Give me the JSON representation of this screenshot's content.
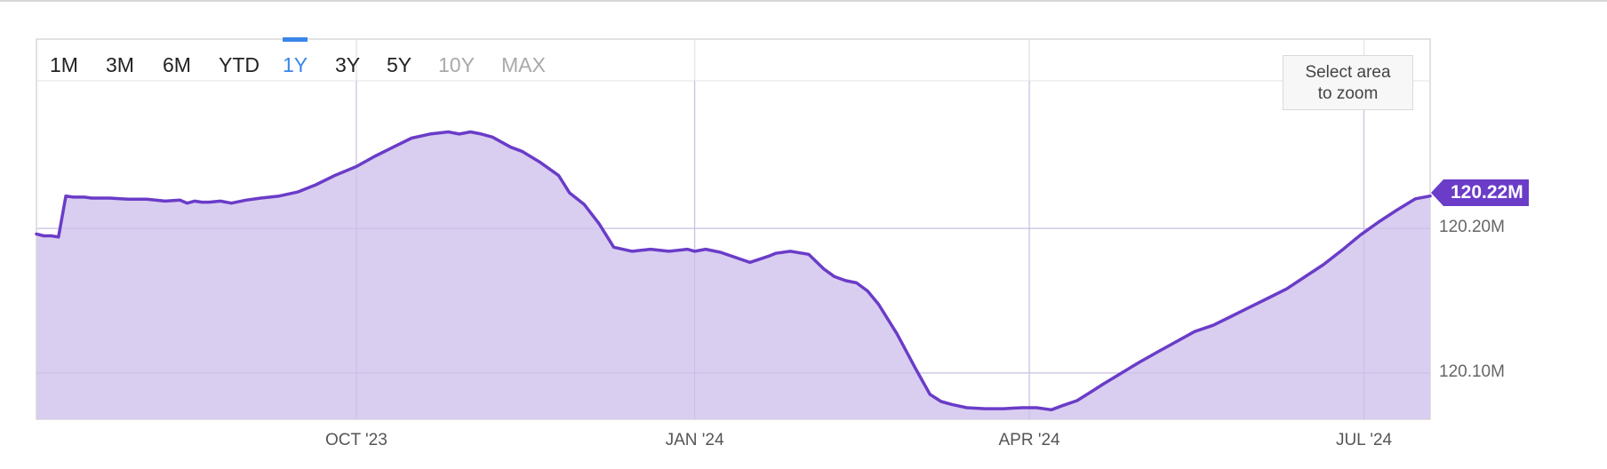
{
  "range_selector": {
    "buttons": [
      {
        "label": "1M",
        "state": "normal"
      },
      {
        "label": "3M",
        "state": "normal"
      },
      {
        "label": "6M",
        "state": "normal"
      },
      {
        "label": "YTD",
        "state": "normal"
      },
      {
        "label": "1Y",
        "state": "active"
      },
      {
        "label": "3Y",
        "state": "normal"
      },
      {
        "label": "5Y",
        "state": "normal"
      },
      {
        "label": "10Y",
        "state": "disabled"
      },
      {
        "label": "MAX",
        "state": "disabled"
      }
    ],
    "active_color": "#3a86e8"
  },
  "zoom_hint": {
    "line1": "Select area",
    "line2": "to zoom"
  },
  "current_value_label": "120.22M",
  "colors": {
    "line": "#6a3cc8",
    "fill": "#d7cbef",
    "label_bg": "#6a3cc8"
  },
  "chart_data": {
    "type": "area",
    "title": "",
    "xlabel": "",
    "ylabel": "",
    "x_ticks": [
      "OCT '23",
      "JAN '24",
      "APR '24",
      "JUL '24"
    ],
    "y_ticks": [
      "120.20M",
      "120.10M"
    ],
    "y_tick_values": [
      120.2,
      120.1
    ],
    "y_unit": "M",
    "ylim": [
      120.068,
      120.331
    ],
    "xlim": [
      "2023-07-06",
      "2024-07-19"
    ],
    "grid": true,
    "series": [
      {
        "x": [
          "2023-07-06",
          "2023-07-08",
          "2023-07-10",
          "2023-07-12",
          "2023-07-14",
          "2023-07-16",
          "2023-07-19",
          "2023-07-21",
          "2023-07-26",
          "2023-07-31",
          "2023-08-05",
          "2023-08-10",
          "2023-08-14",
          "2023-08-16",
          "2023-08-18",
          "2023-08-20",
          "2023-08-22",
          "2023-08-25",
          "2023-08-28",
          "2023-09-01",
          "2023-09-05",
          "2023-09-10",
          "2023-09-15",
          "2023-09-20",
          "2023-09-25",
          "2023-10-01",
          "2023-10-06",
          "2023-10-11",
          "2023-10-16",
          "2023-10-21",
          "2023-10-26",
          "2023-10-29",
          "2023-11-01",
          "2023-11-04",
          "2023-11-07",
          "2023-11-12",
          "2023-11-15",
          "2023-11-20",
          "2023-11-25",
          "2023-11-28",
          "2023-12-02",
          "2023-12-06",
          "2023-12-10",
          "2023-12-15",
          "2023-12-20",
          "2023-12-25",
          "2023-12-30",
          "2024-01-01",
          "2024-01-04",
          "2024-01-08",
          "2024-01-12",
          "2024-01-16",
          "2024-01-21",
          "2024-01-23",
          "2024-01-27",
          "2024-02-01",
          "2024-02-05",
          "2024-02-08",
          "2024-02-11",
          "2024-02-14",
          "2024-02-17",
          "2024-02-20",
          "2024-02-25",
          "2024-03-01",
          "2024-03-05",
          "2024-03-08",
          "2024-03-11",
          "2024-03-15",
          "2024-03-20",
          "2024-03-25",
          "2024-03-30",
          "2024-04-03",
          "2024-04-07",
          "2024-04-10",
          "2024-04-14",
          "2024-04-18",
          "2024-04-21",
          "2024-04-26",
          "2024-05-01",
          "2024-05-06",
          "2024-05-11",
          "2024-05-16",
          "2024-05-21",
          "2024-05-26",
          "2024-05-31",
          "2024-06-05",
          "2024-06-10",
          "2024-06-15",
          "2024-06-20",
          "2024-06-25",
          "2024-06-30",
          "2024-07-05",
          "2024-07-10",
          "2024-07-15",
          "2024-07-19"
        ],
        "values": [
          120.1962,
          120.1949,
          120.1949,
          120.1941,
          120.2224,
          120.2217,
          120.2217,
          120.221,
          120.221,
          120.2203,
          120.2203,
          120.2189,
          120.2196,
          120.2175,
          120.2189,
          120.2182,
          120.2182,
          120.2189,
          120.2175,
          120.2196,
          120.221,
          120.2224,
          120.2252,
          120.2302,
          120.2365,
          120.2428,
          120.2499,
          120.2562,
          120.2625,
          120.2653,
          120.2668,
          120.2653,
          120.2668,
          120.2653,
          120.2632,
          120.2562,
          120.2534,
          120.2457,
          120.2366,
          120.2245,
          120.2165,
          120.2033,
          120.187,
          120.1842,
          120.1856,
          120.1842,
          120.1856,
          120.1842,
          120.1856,
          120.1835,
          120.18,
          120.1765,
          120.1807,
          120.1828,
          120.1842,
          120.1821,
          120.1722,
          120.1667,
          120.1639,
          120.1624,
          120.1568,
          120.1476,
          120.1272,
          120.1034,
          120.0852,
          120.0803,
          120.0782,
          120.076,
          120.0753,
          120.0753,
          120.076,
          120.076,
          120.0746,
          120.0774,
          120.0809,
          120.0873,
          120.0922,
          120.0999,
          120.1076,
          120.1147,
          120.1217,
          120.1287,
          120.133,
          120.1393,
          120.1456,
          120.1519,
          120.1582,
          120.1666,
          120.175,
          120.1849,
          120.1954,
          120.2045,
          120.2128,
          120.2205,
          120.2224
        ]
      }
    ]
  }
}
